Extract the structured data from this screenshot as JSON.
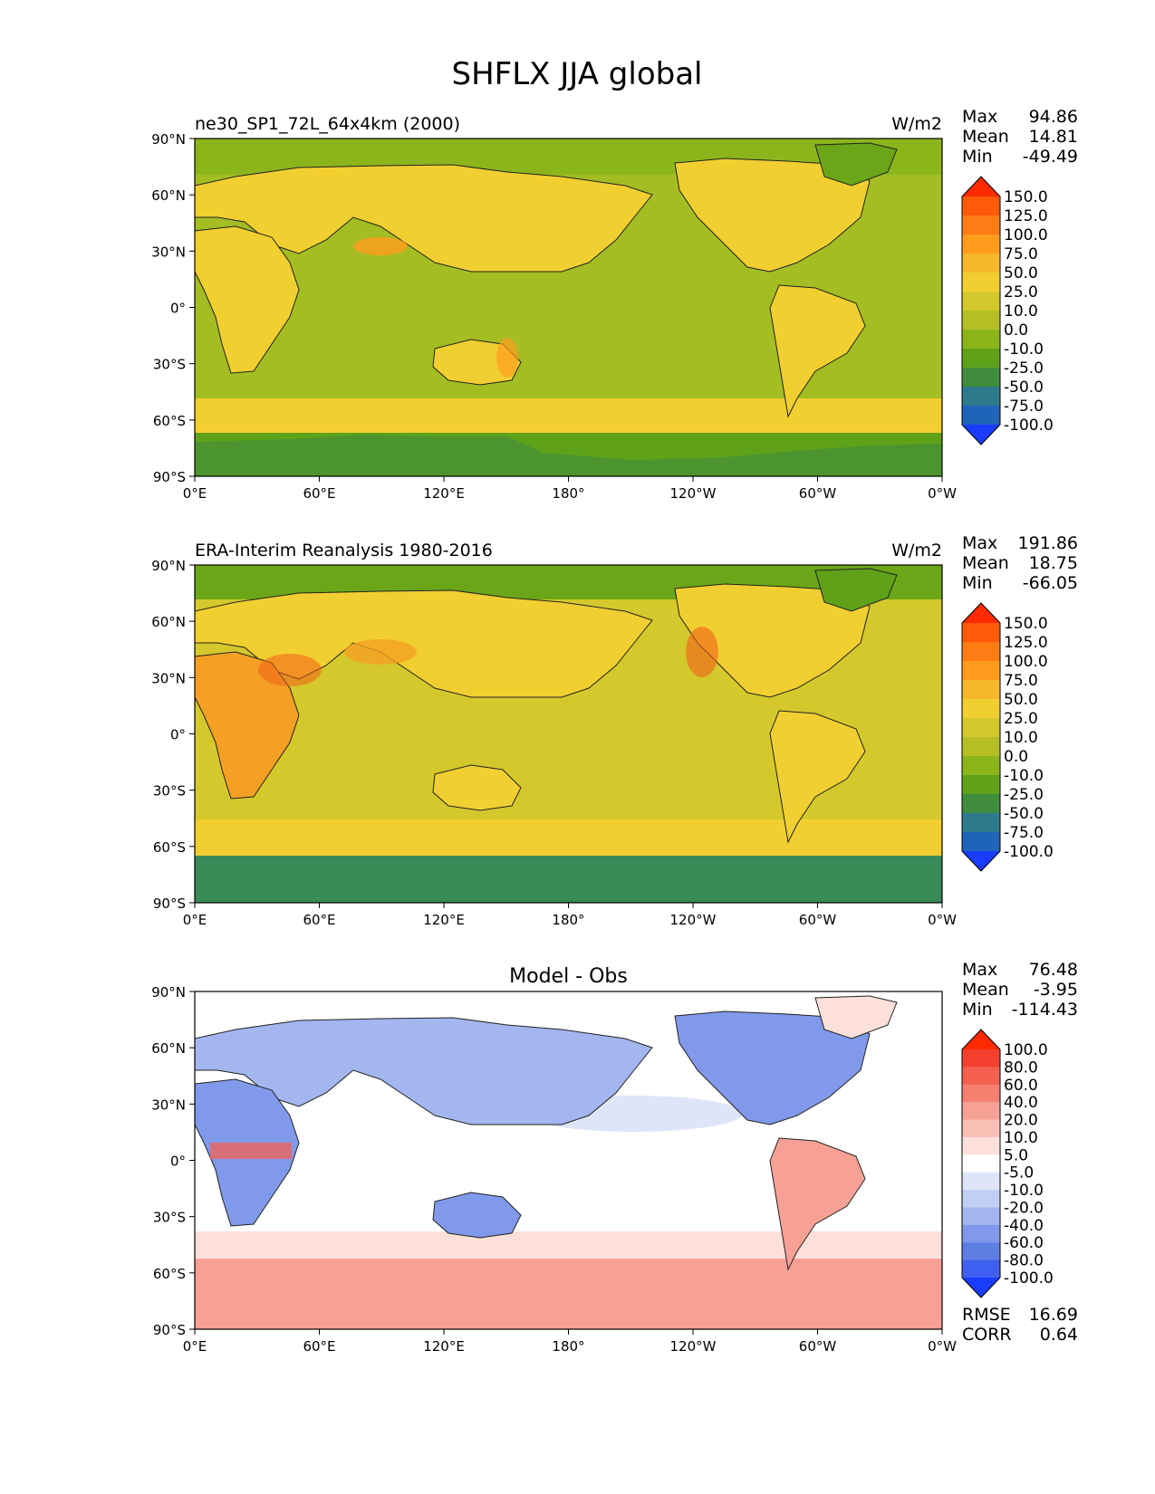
{
  "title": "SHFLX JJA global",
  "colors": {
    "land": "#f2c833",
    "ocean_warm": "#c9bf26",
    "ocean": "#a3bd22",
    "green": "#6aa618",
    "dark_green": "#3e8c54",
    "antarctic": "#3a8a58",
    "orange": "#f5a024",
    "red_orange": "#f0601a",
    "diff_blue": "#5b7fe0",
    "diff_light_blue": "#c9d6f5",
    "diff_red": "#f4857a",
    "diff_light_red": "#fbd2cc"
  },
  "panels": [
    {
      "left_title": "ne30_SP1_72L_64x4km (2000)",
      "center_title": "",
      "units": "W/m2",
      "stats": [
        {
          "label": "Max",
          "value": "94.86"
        },
        {
          "label": "Mean",
          "value": "14.81"
        },
        {
          "label": "Min",
          "value": "-49.49"
        }
      ],
      "colorbar": {
        "levels": [
          "150.0",
          "125.0",
          "100.0",
          "75.0",
          "50.0",
          "25.0",
          "10.0",
          "0.0",
          "-10.0",
          "-25.0",
          "-50.0",
          "-75.0",
          "-100.0"
        ],
        "colors": [
          "#ff2a00",
          "#ff5a0a",
          "#ff7d14",
          "#ff9c1e",
          "#f6b82a",
          "#f2cf30",
          "#d4c82c",
          "#b5bf25",
          "#8cb51c",
          "#5fa219",
          "#3f8c3c",
          "#2c7a8c",
          "#1f64b8",
          "#1a3cff"
        ]
      }
    },
    {
      "left_title": "ERA-Interim Reanalysis 1980-2016",
      "center_title": "",
      "units": "W/m2",
      "stats": [
        {
          "label": "Max",
          "value": "191.86"
        },
        {
          "label": "Mean",
          "value": "18.75"
        },
        {
          "label": "Min",
          "value": "-66.05"
        }
      ],
      "colorbar": {
        "levels": [
          "150.0",
          "125.0",
          "100.0",
          "75.0",
          "50.0",
          "25.0",
          "10.0",
          "0.0",
          "-10.0",
          "-25.0",
          "-50.0",
          "-75.0",
          "-100.0"
        ],
        "colors": [
          "#ff2a00",
          "#ff5a0a",
          "#ff7d14",
          "#ff9c1e",
          "#f6b82a",
          "#f2cf30",
          "#d4c82c",
          "#b5bf25",
          "#8cb51c",
          "#5fa219",
          "#3f8c3c",
          "#2c7a8c",
          "#1f64b8",
          "#1a3cff"
        ]
      }
    },
    {
      "left_title": "",
      "center_title": "Model - Obs",
      "units": "",
      "stats": [
        {
          "label": "Max",
          "value": "76.48"
        },
        {
          "label": "Mean",
          "value": "-3.95"
        },
        {
          "label": "Min",
          "value": "-114.43"
        }
      ],
      "bottom_stats": [
        {
          "label": "RMSE",
          "value": "16.69"
        },
        {
          "label": "CORR",
          "value": "0.64"
        }
      ],
      "colorbar": {
        "levels": [
          "100.0",
          "80.0",
          "60.0",
          "40.0",
          "20.0",
          "10.0",
          "5.0",
          "-5.0",
          "-10.0",
          "-20.0",
          "-40.0",
          "-60.0",
          "-80.0",
          "-100.0"
        ],
        "colors": [
          "#ff2a00",
          "#f54030",
          "#f56150",
          "#f6806f",
          "#f7a196",
          "#fac0b6",
          "#fde0da",
          "#ffffff",
          "#dfe5f8",
          "#c2cff4",
          "#a3b6ef",
          "#8199ea",
          "#5e7ee4",
          "#3f5ff0",
          "#1a3cff"
        ]
      }
    }
  ],
  "axes": {
    "xticks": [
      "0°E",
      "60°E",
      "120°E",
      "180°",
      "120°W",
      "60°W",
      "0°W"
    ],
    "yticks": [
      "90°N",
      "60°N",
      "30°N",
      "0°",
      "30°S",
      "60°S",
      "90°S"
    ]
  }
}
